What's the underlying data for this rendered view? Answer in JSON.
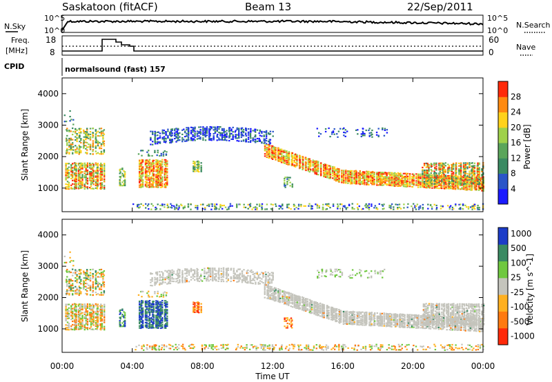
{
  "header": {
    "station": "Saskatoon (fitACF)",
    "beam": "Beam 13",
    "date": "22/Sep/2011"
  },
  "strips": {
    "nsky_label": "N.Sky",
    "nsky_ticks": [
      "10^5",
      "10^0"
    ],
    "nsearch_label": "N.Search",
    "nsearch_ticks": [
      "10^5",
      "10^0"
    ],
    "freq_label_line1": "Freq.",
    "freq_label_line2": "[MHz]",
    "freq_ticks": [
      "18",
      "8"
    ],
    "nave_label": "Nave",
    "nave_ticks": [
      "60",
      "0"
    ],
    "cpid_label": "CPID",
    "cpid_value": "normalsound (fast) 157"
  },
  "time_axis": {
    "ticks": [
      "00:00",
      "04:00",
      "08:00",
      "12:00",
      "16:00",
      "20:00",
      "00:00"
    ],
    "label": "Time UT"
  },
  "colors": {
    "power_scale": [
      "#1a1aff",
      "#2a55c8",
      "#3a8a62",
      "#5aa55a",
      "#9fd14a",
      "#ffd21a",
      "#ff8a10",
      "#ff2a0a"
    ],
    "velocity_scale": [
      "#1c3cc8",
      "#3a8a62",
      "#6fc840",
      "#c4c4bc",
      "#ffb020",
      "#ff7a10",
      "#ff2a0a"
    ]
  },
  "chart_data": [
    {
      "type": "heatmap",
      "title": "Power",
      "xlabel": "Time UT",
      "ylabel": "Slant Range [km]",
      "x_ticks": [
        "00:00",
        "04:00",
        "08:00",
        "12:00",
        "16:00",
        "20:00",
        "00:00"
      ],
      "y_ticks": [
        1000,
        2000,
        3000,
        4000
      ],
      "ylim": [
        250,
        4500
      ],
      "colorbar_label": "Power [dB]",
      "colorbar_ticks": [
        4,
        8,
        12,
        16,
        20,
        24,
        28
      ]
    },
    {
      "type": "heatmap",
      "title": "Velocity",
      "xlabel": "Time UT",
      "ylabel": "Slant Range [km]",
      "x_ticks": [
        "00:00",
        "04:00",
        "08:00",
        "12:00",
        "16:00",
        "20:00",
        "00:00"
      ],
      "y_ticks": [
        1000,
        2000,
        3000,
        4000
      ],
      "ylim": [
        250,
        4500
      ],
      "colorbar_label": "Velocity [m s^-1]",
      "colorbar_ticks": [
        1000,
        500,
        100,
        25,
        -25,
        -100,
        -500,
        -1000
      ]
    }
  ]
}
